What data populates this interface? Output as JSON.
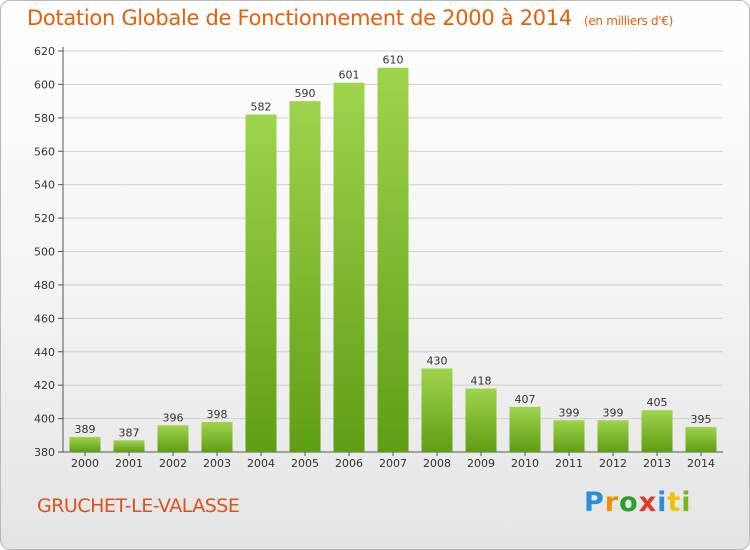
{
  "title": "Dotation Globale de Fonctionnement de 2000 à 2014",
  "subtitle": "(en milliers d'€)",
  "commune": "GRUCHET-LE-VALASSE",
  "logo": {
    "letters": [
      "P",
      "r",
      "o",
      "x",
      "i",
      "t",
      "i"
    ],
    "colors": [
      "#2a8fd6",
      "#f29100",
      "#2aa02a",
      "#e23a2a",
      "#2a8fd6",
      "#f2c200",
      "#7ab51d"
    ]
  },
  "colors": {
    "bar_light": "#9fd44d",
    "bar_dark": "#5f9e14",
    "title": "#e2600a",
    "grid": "#d0d0d0"
  },
  "chart_data": {
    "type": "bar",
    "title": "Dotation Globale de Fonctionnement de 2000 à 2014",
    "subtitle": "(en milliers d'€)",
    "categories": [
      "2000",
      "2001",
      "2002",
      "2003",
      "2004",
      "2005",
      "2006",
      "2007",
      "2008",
      "2009",
      "2010",
      "2011",
      "2012",
      "2013",
      "2014"
    ],
    "values": [
      389,
      387,
      396,
      398,
      582,
      590,
      601,
      610,
      430,
      418,
      407,
      399,
      399,
      405,
      395
    ],
    "ylim": [
      380,
      620
    ],
    "yticks": [
      380,
      400,
      420,
      440,
      460,
      480,
      500,
      520,
      540,
      560,
      580,
      600,
      620
    ],
    "xlabel": "",
    "ylabel": "",
    "grid": true,
    "data_labels": true
  }
}
